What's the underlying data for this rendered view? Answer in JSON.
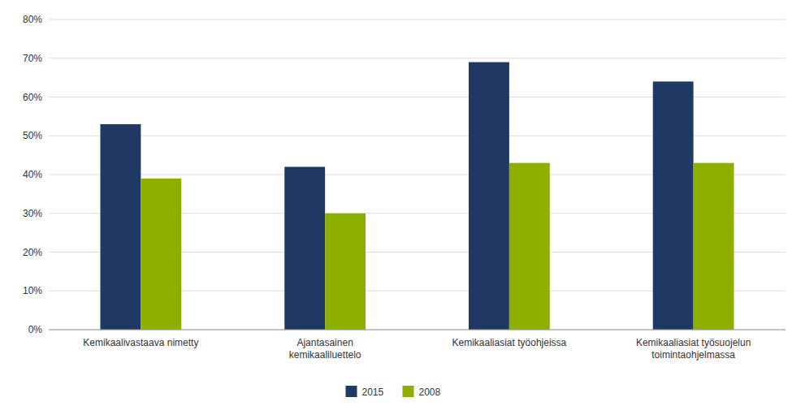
{
  "chart_data": {
    "type": "bar",
    "categories": [
      "Kemikaalivastaava nimetty",
      "Ajantasainen\nkemikaaliluettelo",
      "Kemikaaliasiat työohjeissa",
      "Kemikaaliasiat työsuojelun\ntoimintaohjelmassa"
    ],
    "series": [
      {
        "name": "2015",
        "color": "#1F3864",
        "values": [
          0.53,
          0.42,
          0.69,
          0.64
        ]
      },
      {
        "name": "2008",
        "color": "#8DB000",
        "values": [
          0.39,
          0.3,
          0.43,
          0.43
        ]
      }
    ],
    "ylim": [
      0,
      0.8
    ],
    "yticks": [
      {
        "value": 0.0,
        "label": "0%"
      },
      {
        "value": 0.1,
        "label": "10%"
      },
      {
        "value": 0.2,
        "label": "20%"
      },
      {
        "value": 0.3,
        "label": "30%"
      },
      {
        "value": 0.4,
        "label": "40%"
      },
      {
        "value": 0.5,
        "label": "50%"
      },
      {
        "value": 0.6,
        "label": "60%"
      },
      {
        "value": 0.7,
        "label": "70%"
      },
      {
        "value": 0.8,
        "label": "80%"
      }
    ],
    "grid": true,
    "legend": "bottom"
  }
}
